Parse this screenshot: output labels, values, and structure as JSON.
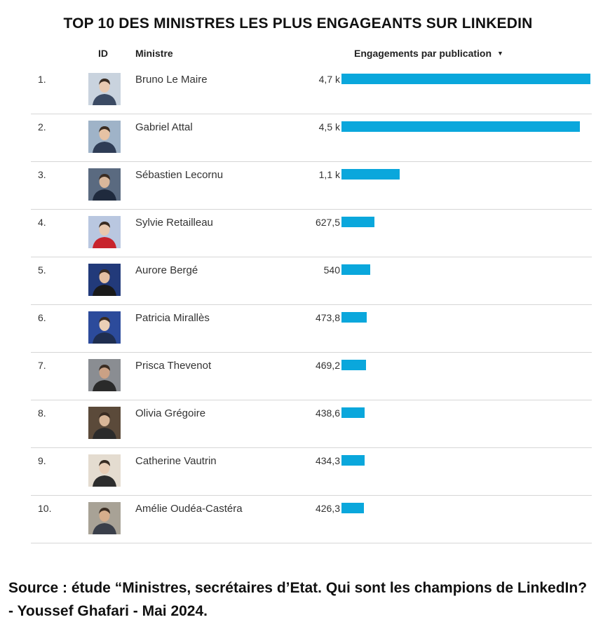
{
  "chart_data": {
    "type": "bar",
    "orientation": "horizontal",
    "title": "TOP 10 DES MINISTRES LES PLUS ENGAGEANTS SUR LINKEDIN",
    "columns": {
      "id": "ID",
      "name": "Ministre",
      "metric": "Engagements par publication"
    },
    "sort": "descending",
    "series": [
      {
        "name": "Engagements par publication",
        "color": "#0aa7dc"
      }
    ],
    "rows": [
      {
        "rank": "1.",
        "name": "Bruno Le Maire",
        "value": 4700,
        "label": "4,7 k"
      },
      {
        "rank": "2.",
        "name": "Gabriel Attal",
        "value": 4500,
        "label": "4,5 k"
      },
      {
        "rank": "3.",
        "name": "Sébastien Lecornu",
        "value": 1100,
        "label": "1,1 k"
      },
      {
        "rank": "4.",
        "name": "Sylvie Retailleau",
        "value": 627.5,
        "label": "627,5"
      },
      {
        "rank": "5.",
        "name": "Aurore Bergé",
        "value": 540,
        "label": "540"
      },
      {
        "rank": "6.",
        "name": "Patricia Mirallès",
        "value": 473.8,
        "label": "473,8"
      },
      {
        "rank": "7.",
        "name": "Prisca Thevenot",
        "value": 469.2,
        "label": "469,2"
      },
      {
        "rank": "8.",
        "name": "Olivia Grégoire",
        "value": 438.6,
        "label": "438,6"
      },
      {
        "rank": "9.",
        "name": "Catherine Vautrin",
        "value": 434.3,
        "label": "434,3"
      },
      {
        "rank": "10.",
        "name": "Amélie Oudéa-Castéra",
        "value": 426.3,
        "label": "426,3"
      }
    ],
    "xlim": [
      0,
      4700
    ]
  },
  "sort_icon": "sort-descending-icon",
  "source": "Source : étude “Ministres, secrétaires d’Etat. Qui sont les champions de LinkedIn? - Youssef Ghafari - Mai 2024."
}
